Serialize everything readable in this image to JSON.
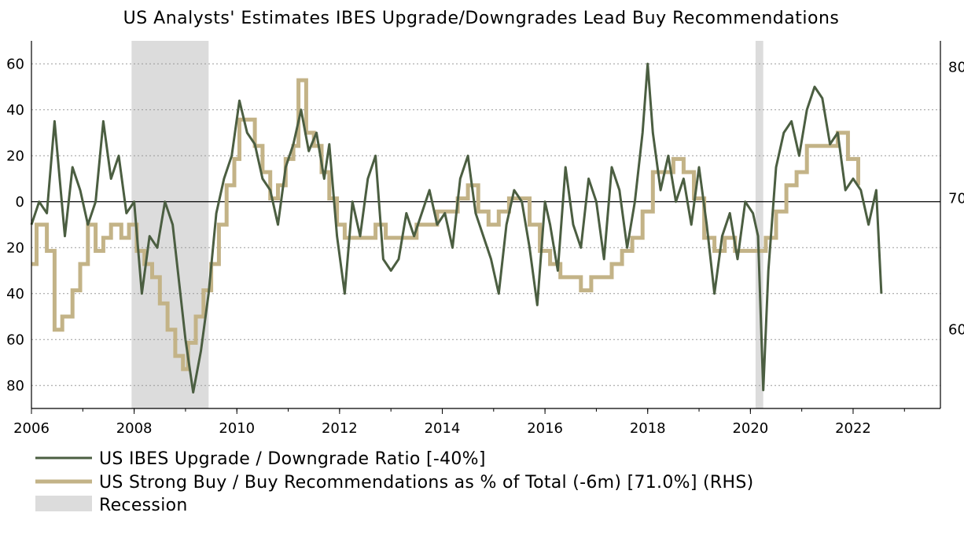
{
  "chart_data": {
    "type": "line",
    "title": "US Analysts' Estimates IBES Upgrade/Downgrades Lead Buy Recommendations",
    "x_ticks": [
      {
        "value": 2006,
        "label": "2006"
      },
      {
        "value": 2008,
        "label": "2008"
      },
      {
        "value": 2010,
        "label": "2010"
      },
      {
        "value": 2012,
        "label": "2012"
      },
      {
        "value": 2014,
        "label": "2014"
      },
      {
        "value": 2016,
        "label": "2016"
      },
      {
        "value": 2018,
        "label": "2018"
      },
      {
        "value": 2020,
        "label": "2020"
      },
      {
        "value": 2022,
        "label": "2022"
      }
    ],
    "xlim": [
      2006,
      2023.7
    ],
    "ylim_left": [
      -90,
      70
    ],
    "ylim_right": [
      54,
      82
    ],
    "y_ticks_left": [
      {
        "value": 60,
        "label": "60"
      },
      {
        "value": 40,
        "label": "40"
      },
      {
        "value": 20,
        "label": "20"
      },
      {
        "value": 0,
        "label": "0"
      },
      {
        "value": -20,
        "label": "20"
      },
      {
        "value": -40,
        "label": "40"
      },
      {
        "value": -60,
        "label": "60"
      },
      {
        "value": -80,
        "label": "80"
      }
    ],
    "y_ticks_right": [
      {
        "value": 80,
        "label": "80"
      },
      {
        "value": 70,
        "label": "70"
      },
      {
        "value": 60,
        "label": "60"
      }
    ],
    "grid": true,
    "recessions": [
      [
        2007.95,
        2009.45
      ],
      [
        2020.1,
        2020.25
      ]
    ],
    "series": [
      {
        "name": "US IBES Upgrade / Downgrade Ratio  [-40%]",
        "axis": "left",
        "color": "#4b5e41",
        "x": [
          2006.0,
          2006.15,
          2006.3,
          2006.45,
          2006.55,
          2006.65,
          2006.8,
          2006.95,
          2007.1,
          2007.25,
          2007.4,
          2007.55,
          2007.7,
          2007.85,
          2008.0,
          2008.15,
          2008.3,
          2008.45,
          2008.6,
          2008.75,
          2008.9,
          2009.0,
          2009.15,
          2009.3,
          2009.45,
          2009.6,
          2009.75,
          2009.9,
          2010.05,
          2010.2,
          2010.35,
          2010.5,
          2010.65,
          2010.8,
          2010.95,
          2011.1,
          2011.25,
          2011.4,
          2011.55,
          2011.7,
          2011.8,
          2011.95,
          2012.1,
          2012.25,
          2012.4,
          2012.55,
          2012.7,
          2012.85,
          2013.0,
          2013.15,
          2013.3,
          2013.45,
          2013.6,
          2013.75,
          2013.9,
          2014.05,
          2014.2,
          2014.35,
          2014.5,
          2014.65,
          2014.8,
          2014.95,
          2015.1,
          2015.25,
          2015.4,
          2015.55,
          2015.7,
          2015.85,
          2016.0,
          2016.1,
          2016.25,
          2016.4,
          2016.55,
          2016.7,
          2016.85,
          2017.0,
          2017.15,
          2017.3,
          2017.45,
          2017.6,
          2017.75,
          2017.9,
          2018.0,
          2018.1,
          2018.25,
          2018.4,
          2018.55,
          2018.7,
          2018.85,
          2019.0,
          2019.15,
          2019.3,
          2019.45,
          2019.6,
          2019.75,
          2019.9,
          2020.05,
          2020.15,
          2020.25,
          2020.35,
          2020.5,
          2020.65,
          2020.8,
          2020.95,
          2021.1,
          2021.25,
          2021.4,
          2021.55,
          2021.7,
          2021.85,
          2022.0,
          2022.15,
          2022.3,
          2022.45,
          2022.55
        ],
        "values": [
          -10,
          0,
          -5,
          35,
          10,
          -15,
          15,
          5,
          -10,
          0,
          35,
          10,
          20,
          -5,
          0,
          -40,
          -15,
          -20,
          0,
          -10,
          -40,
          -60,
          -83,
          -65,
          -40,
          -5,
          10,
          20,
          44,
          30,
          25,
          10,
          5,
          -10,
          15,
          25,
          40,
          22,
          30,
          10,
          25,
          -15,
          -40,
          0,
          -15,
          10,
          20,
          -25,
          -30,
          -25,
          -5,
          -15,
          -5,
          5,
          -10,
          -5,
          -20,
          10,
          20,
          -5,
          -15,
          -25,
          -40,
          -10,
          5,
          0,
          -20,
          -45,
          0,
          -10,
          -30,
          15,
          -10,
          -20,
          10,
          0,
          -25,
          15,
          5,
          -20,
          0,
          30,
          60,
          30,
          5,
          20,
          0,
          10,
          -10,
          15,
          -10,
          -40,
          -15,
          -5,
          -25,
          0,
          -5,
          -15,
          -82,
          -30,
          15,
          30,
          35,
          20,
          40,
          50,
          45,
          25,
          30,
          5,
          10,
          5,
          -10,
          5,
          -40
        ]
      },
      {
        "name": "US Strong Buy / Buy Recommendations as % of Total (-6m) [71.0%] (RHS)",
        "axis": "right",
        "color": "#c3b387",
        "x": [
          2006.0,
          2006.1,
          2006.3,
          2006.45,
          2006.6,
          2006.8,
          2006.95,
          2007.1,
          2007.25,
          2007.4,
          2007.55,
          2007.75,
          2007.9,
          2008.05,
          2008.2,
          2008.35,
          2008.5,
          2008.65,
          2008.8,
          2008.95,
          2009.05,
          2009.2,
          2009.35,
          2009.5,
          2009.65,
          2009.8,
          2009.95,
          2010.05,
          2010.2,
          2010.35,
          2010.5,
          2010.65,
          2010.8,
          2010.95,
          2011.1,
          2011.2,
          2011.35,
          2011.5,
          2011.65,
          2011.8,
          2011.95,
          2012.1,
          2012.3,
          2012.5,
          2012.7,
          2012.9,
          2013.1,
          2013.3,
          2013.5,
          2013.7,
          2013.9,
          2014.1,
          2014.3,
          2014.5,
          2014.7,
          2014.9,
          2015.1,
          2015.3,
          2015.5,
          2015.7,
          2015.9,
          2016.1,
          2016.3,
          2016.5,
          2016.7,
          2016.9,
          2017.1,
          2017.3,
          2017.5,
          2017.7,
          2017.9,
          2018.1,
          2018.3,
          2018.5,
          2018.7,
          2018.9,
          2019.1,
          2019.3,
          2019.5,
          2019.7,
          2019.9,
          2020.1,
          2020.3,
          2020.5,
          2020.7,
          2020.9,
          2021.1,
          2021.3,
          2021.5,
          2021.7,
          2021.9,
          2022.1
        ],
        "values": [
          65,
          68,
          66,
          60,
          61,
          63,
          65,
          68,
          66,
          67,
          68,
          67,
          68,
          66,
          65,
          64,
          62,
          60,
          58,
          57,
          59,
          61,
          63,
          65,
          68,
          71,
          73,
          76,
          76,
          74,
          72,
          70,
          71,
          73,
          74,
          79,
          75,
          74,
          72,
          70,
          68,
          67,
          67,
          67,
          68,
          67,
          67,
          67,
          68,
          68,
          69,
          69,
          70,
          71,
          69,
          68,
          69,
          70,
          70,
          68,
          66,
          65,
          64,
          64,
          63,
          64,
          64,
          65,
          66,
          67,
          69,
          72,
          72,
          73,
          72,
          70,
          67,
          66,
          67,
          66,
          66,
          66,
          67,
          69,
          71,
          72,
          74,
          74,
          74,
          75,
          73,
          71
        ]
      },
      {
        "name": "Recession",
        "type": "shade",
        "color": "#dcdcdc"
      }
    ]
  }
}
